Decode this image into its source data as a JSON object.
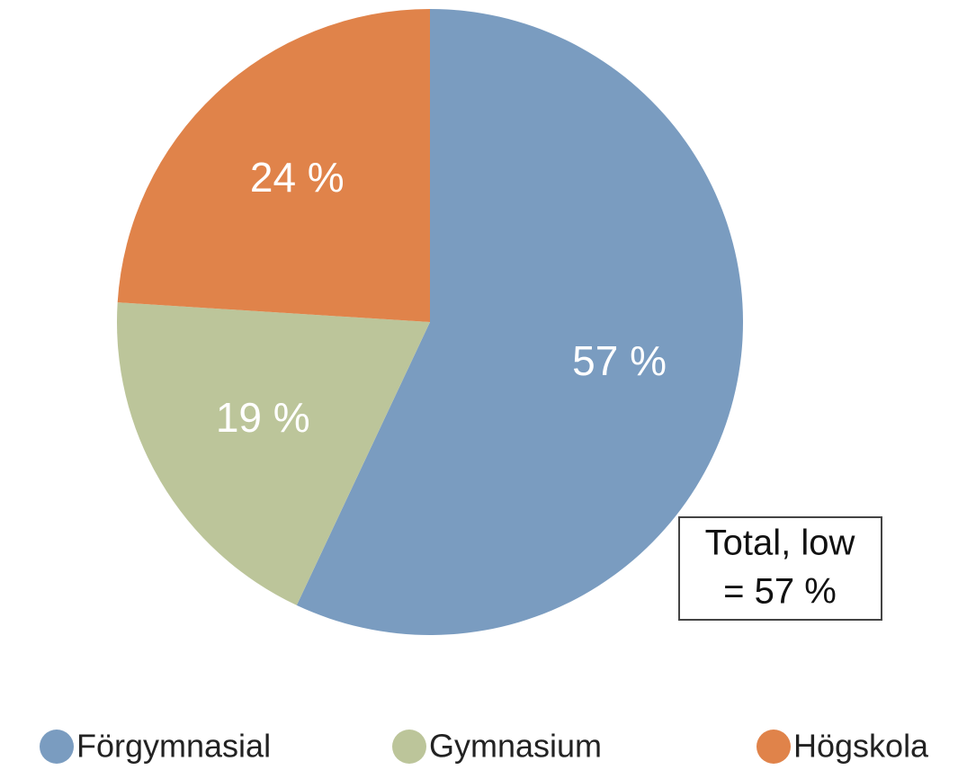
{
  "chart_data": {
    "type": "pie",
    "categories": [
      "Förgymnasial",
      "Gymnasium",
      "Högskola"
    ],
    "values": [
      57,
      19,
      24
    ],
    "value_labels": [
      "57 %",
      "19 %",
      "24 %"
    ],
    "colors": [
      "#7a9cc0",
      "#bcc59a",
      "#e0834a"
    ],
    "annotation": [
      "Total, low",
      "= 57 %"
    ]
  }
}
